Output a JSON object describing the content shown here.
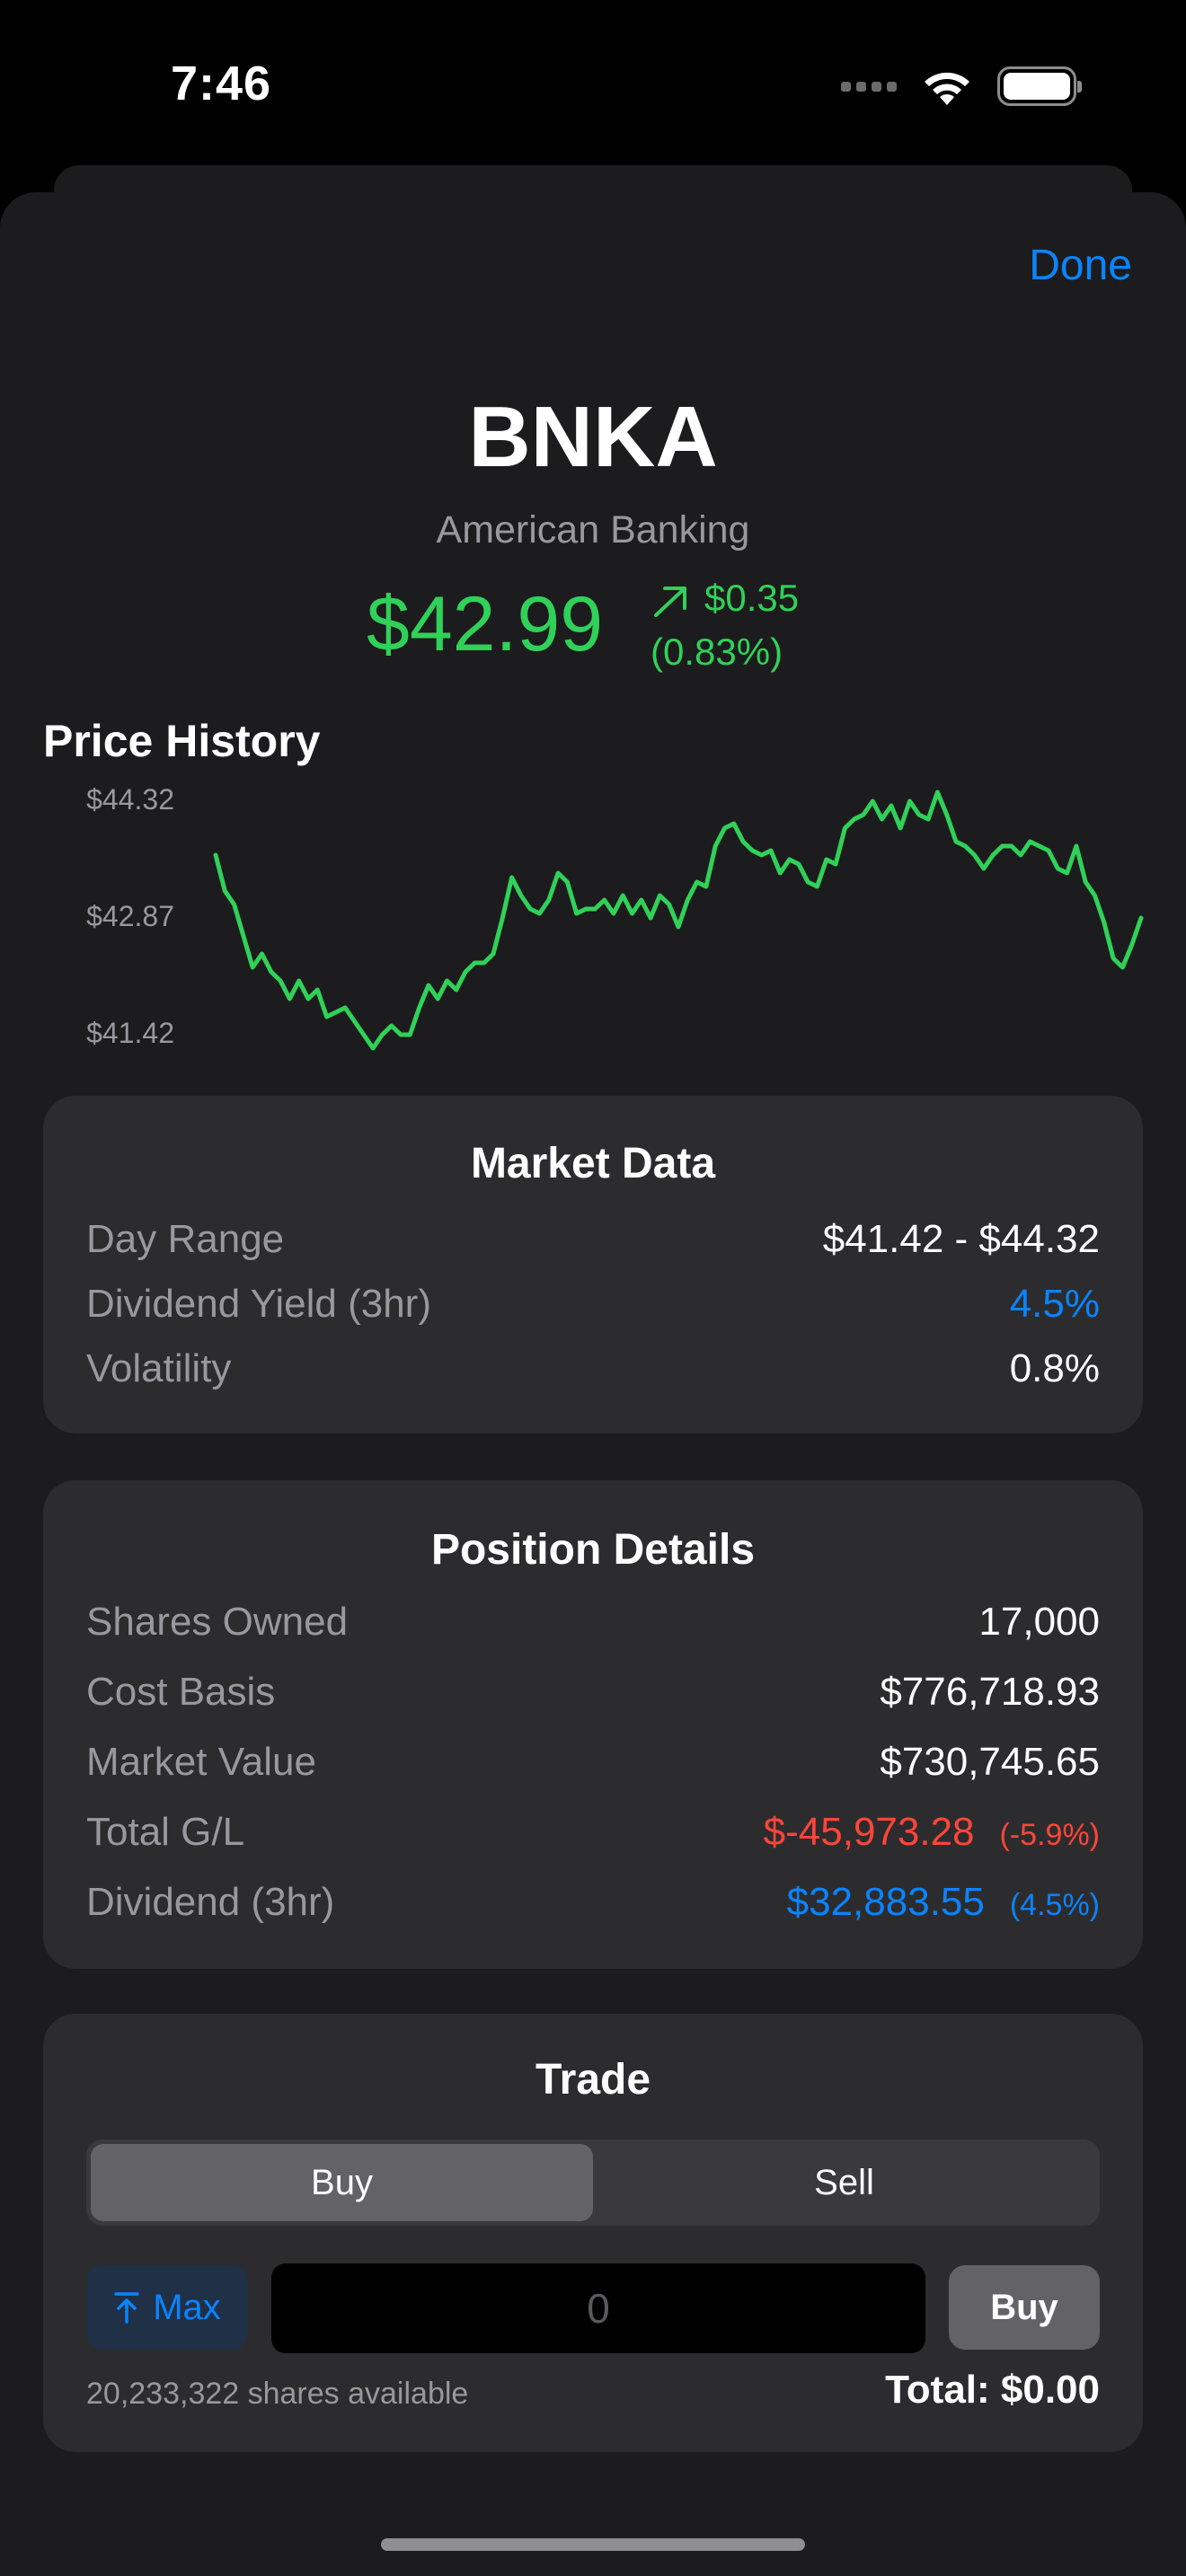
{
  "status_bar": {
    "time": "7:46"
  },
  "header": {
    "done_label": "Done"
  },
  "stock": {
    "ticker": "BNKA",
    "company": "American Banking",
    "price": "$42.99",
    "change_amount": "$0.35",
    "change_percent": "(0.83%)",
    "accent_color": "#30d158"
  },
  "price_history": {
    "title": "Price History",
    "y_labels": [
      "$44.32",
      "$42.87",
      "$41.42"
    ]
  },
  "chart_data": {
    "type": "line",
    "title": "Price History",
    "xlabel": "",
    "ylabel": "",
    "ylim": [
      41.42,
      44.32
    ],
    "y_ticks": [
      44.32,
      42.87,
      41.42
    ],
    "grid": false,
    "series": [
      {
        "color": "#30d158",
        "values": [
          43.6,
          43.2,
          43.05,
          42.7,
          42.35,
          42.5,
          42.3,
          42.2,
          42.0,
          42.2,
          42.0,
          42.1,
          41.8,
          41.85,
          41.9,
          41.75,
          41.6,
          41.45,
          41.6,
          41.7,
          41.6,
          41.6,
          41.9,
          42.15,
          42.0,
          42.2,
          42.1,
          42.3,
          42.4,
          42.4,
          42.5,
          42.9,
          43.35,
          43.15,
          43.0,
          42.95,
          43.1,
          43.4,
          43.3,
          42.95,
          43.0,
          43.0,
          43.1,
          42.95,
          43.15,
          42.95,
          43.1,
          42.9,
          43.15,
          43.05,
          42.8,
          43.1,
          43.3,
          43.25,
          43.7,
          43.9,
          43.95,
          43.75,
          43.65,
          43.6,
          43.65,
          43.4,
          43.55,
          43.5,
          43.3,
          43.25,
          43.55,
          43.5,
          43.9,
          44.0,
          44.05,
          44.2,
          44.0,
          44.15,
          43.9,
          44.2,
          44.05,
          44.0,
          44.3,
          44.05,
          43.75,
          43.7,
          43.6,
          43.45,
          43.6,
          43.7,
          43.7,
          43.6,
          43.75,
          43.7,
          43.65,
          43.45,
          43.4,
          43.7,
          43.3,
          43.15,
          42.85,
          42.45,
          42.35,
          42.6,
          42.9
        ]
      }
    ]
  },
  "market_data": {
    "title": "Market Data",
    "rows": [
      {
        "label": "Day Range",
        "value": "$41.42 - $44.32"
      },
      {
        "label": "Dividend Yield (3hr)",
        "value": "4.5%"
      },
      {
        "label": "Volatility",
        "value": "0.8%"
      }
    ]
  },
  "position": {
    "title": "Position Details",
    "shares_label": "Shares Owned",
    "shares_value": "17,000",
    "cost_label": "Cost Basis",
    "cost_value": "$776,718.93",
    "market_label": "Market Value",
    "market_value": "$730,745.65",
    "gl_label": "Total G/L",
    "gl_value": "$-45,973.28",
    "gl_pct": "(-5.9%)",
    "div_label": "Dividend (3hr)",
    "div_value": "$32,883.55",
    "div_pct": "(4.5%)"
  },
  "trade": {
    "title": "Trade",
    "tabs": [
      {
        "label": "Buy"
      },
      {
        "label": "Sell"
      }
    ],
    "selected_tab": "Buy",
    "max_label": "Max",
    "quantity_placeholder": "0",
    "action_label": "Buy",
    "available": "20,233,322 shares available",
    "total": "Total: $0.00"
  }
}
